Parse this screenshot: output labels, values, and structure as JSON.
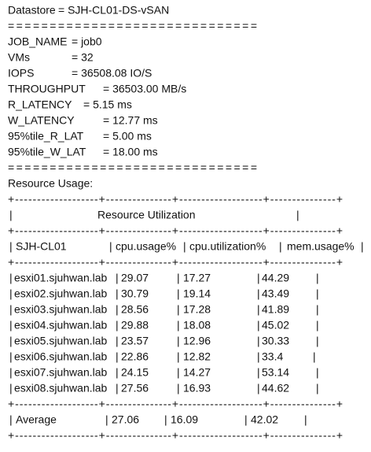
{
  "summary": [
    {
      "label": "Datastore",
      "value": "= SJH-CL01-DS-vSAN"
    },
    {
      "label": "JOB_NAME",
      "value": "= job0"
    },
    {
      "label": "VMs",
      "value": "= 32"
    },
    {
      "label": "IOPS",
      "value": "= 36508.08 IO/S"
    },
    {
      "label": "THROUGHPUT",
      "value": "= 36503.00 MB/s"
    },
    {
      "label": "R_LATENCY",
      "value": "= 5.15 ms"
    },
    {
      "label": "W_LATENCY",
      "value": "= 12.77 ms"
    },
    {
      "label": "95%tile_R_LAT",
      "value": "= 5.00 ms"
    },
    {
      "label": "95%tile_W_LAT",
      "value": "= 18.00 ms"
    }
  ],
  "rule": "==============================",
  "section": "Resource Usage:",
  "table": {
    "border": "+-------------------+---------------+-------------------+---------------+",
    "separator": "|",
    "title": "Resource Utilization",
    "columns": [
      "SJH-CL01",
      "cpu.usage%",
      "cpu.utilization%",
      "mem.usage%"
    ],
    "rows": [
      [
        "esxi01.sjuhwan.lab",
        29.07,
        17.27,
        44.29
      ],
      [
        "esxi02.sjuhwan.lab",
        30.79,
        19.14,
        43.49
      ],
      [
        "esxi03.sjuhwan.lab",
        28.56,
        17.28,
        41.89
      ],
      [
        "esxi04.sjuhwan.lab",
        29.88,
        18.08,
        45.02
      ],
      [
        "esxi05.sjuhwan.lab",
        23.57,
        12.96,
        30.33
      ],
      [
        "esxi06.sjuhwan.lab",
        22.86,
        12.82,
        33.4
      ],
      [
        "esxi07.sjuhwan.lab",
        24.15,
        14.27,
        53.14
      ],
      [
        "esxi08.sjuhwan.lab",
        27.56,
        16.93,
        44.62
      ]
    ],
    "average": [
      "Average",
      27.06,
      16.09,
      42.02
    ]
  }
}
